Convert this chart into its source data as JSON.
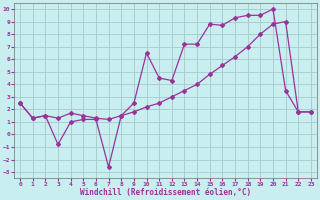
{
  "xlabel": "Windchill (Refroidissement éolien,°C)",
  "background_color": "#c8eef0",
  "grid_color": "#a8c8cc",
  "line_color": "#993399",
  "xlim": [
    -0.5,
    23.5
  ],
  "ylim": [
    -3.5,
    10.5
  ],
  "xticks": [
    0,
    1,
    2,
    3,
    4,
    5,
    6,
    7,
    8,
    9,
    10,
    11,
    12,
    13,
    14,
    15,
    16,
    17,
    18,
    19,
    20,
    21,
    22,
    23
  ],
  "yticks": [
    -3,
    -2,
    -1,
    0,
    1,
    2,
    3,
    4,
    5,
    6,
    7,
    8,
    9,
    10
  ],
  "line1_x": [
    0,
    1,
    2,
    3,
    4,
    5,
    6,
    7,
    8,
    9,
    10,
    11,
    12,
    13,
    14,
    15,
    16,
    17,
    18,
    19,
    20,
    21,
    22,
    23
  ],
  "line1_y": [
    2.5,
    1.3,
    1.5,
    -0.8,
    1.0,
    1.2,
    1.2,
    -2.6,
    1.5,
    2.5,
    6.5,
    4.5,
    4.3,
    7.2,
    7.2,
    8.8,
    8.7,
    9.3,
    9.5,
    9.5,
    10.0,
    3.5,
    1.8,
    1.8
  ],
  "line2_x": [
    0,
    1,
    2,
    3,
    4,
    5,
    6,
    7,
    8,
    9,
    10,
    11,
    12,
    13,
    14,
    15,
    16,
    17,
    18,
    19,
    20,
    21,
    22,
    23
  ],
  "line2_y": [
    2.5,
    1.3,
    1.5,
    1.3,
    1.7,
    1.5,
    1.3,
    1.2,
    1.5,
    1.8,
    2.2,
    2.5,
    3.0,
    3.5,
    4.0,
    4.8,
    5.5,
    6.2,
    7.0,
    8.0,
    8.8,
    9.0,
    1.8,
    1.8
  ]
}
